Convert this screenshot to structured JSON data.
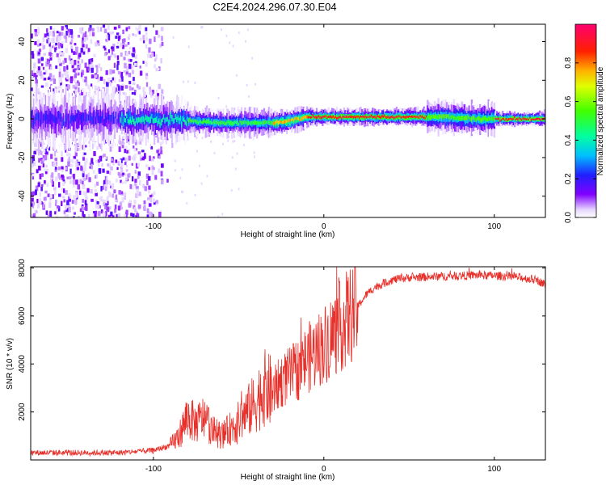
{
  "title": "C2E4.2024.296.07.30.E04",
  "colors": {
    "snr_line": "#e8302a",
    "axis": "#000000"
  },
  "chart_data": [
    {
      "type": "heatmap",
      "xlabel": "Height of straight line (km)",
      "ylabel": "Frequency (Hz)",
      "xlim": [
        -172,
        130
      ],
      "ylim": [
        -51,
        49
      ],
      "xticks": [
        -100,
        0,
        100
      ],
      "yticks": [
        -40,
        -20,
        0,
        20,
        40
      ],
      "colorbar": {
        "label": "Normalized spectral amplitude",
        "range": [
          0,
          1
        ],
        "ticks": [
          0.0,
          0.2,
          0.4,
          0.6,
          0.8
        ],
        "colormap": "hsv-rainbow"
      },
      "ridge": {
        "description_points": [
          [
            -170,
            0
          ],
          [
            -120,
            0
          ],
          [
            -80,
            -1
          ],
          [
            -60,
            -2
          ],
          [
            -45,
            -2
          ],
          [
            -30,
            -2
          ],
          [
            -20,
            -1
          ],
          [
            -10,
            1
          ],
          [
            0,
            1
          ],
          [
            20,
            1
          ],
          [
            50,
            1
          ],
          [
            70,
            1
          ],
          [
            90,
            0
          ],
          [
            110,
            0
          ],
          [
            130,
            0
          ]
        ]
      },
      "grid": false
    },
    {
      "type": "line",
      "xlabel": "Height of straight line (km)",
      "ylabel": "SNR (10 * v/v)",
      "xlim": [
        -172,
        130
      ],
      "ylim": [
        0,
        8050
      ],
      "xticks": [
        -100,
        0,
        100
      ],
      "yticks": [
        2000,
        4000,
        6000,
        8000
      ],
      "grid": false,
      "series": [
        {
          "envelope_x": [
            -172,
            -120,
            -100,
            -90,
            -85,
            -80,
            -75,
            -70,
            -65,
            -60,
            -55,
            -50,
            -45,
            -40,
            -35,
            -30,
            -25,
            -20,
            -15,
            -10,
            -5,
            0,
            5,
            10,
            15,
            20,
            25,
            30,
            40,
            50,
            70,
            90,
            110,
            125,
            130
          ],
          "envelope_y": [
            300,
            300,
            400,
            600,
            1000,
            1800,
            1500,
            1800,
            1200,
            1000,
            1300,
            1600,
            2000,
            2400,
            3000,
            2800,
            3300,
            3500,
            3800,
            4200,
            4500,
            4800,
            5200,
            5600,
            6000,
            6400,
            6900,
            7200,
            7500,
            7600,
            7650,
            7700,
            7650,
            7500,
            7300
          ]
        }
      ]
    }
  ]
}
